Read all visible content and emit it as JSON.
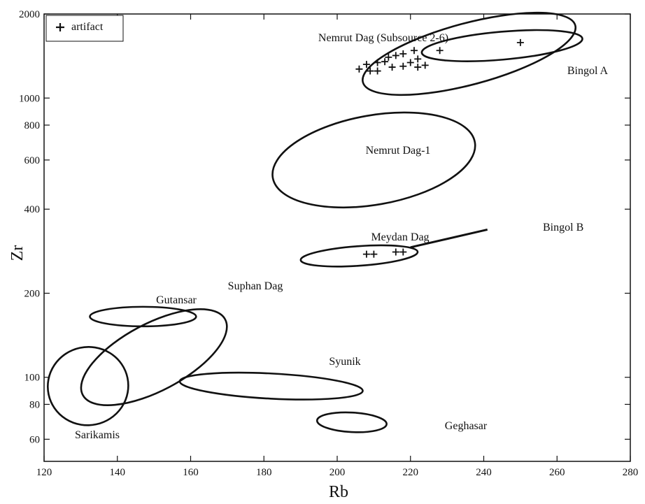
{
  "chart_data": {
    "type": "scatter",
    "xlabel": "Rb",
    "ylabel": "Zr",
    "xlim": [
      120,
      280
    ],
    "ylim": [
      50,
      2000
    ],
    "yscale": "log",
    "x_ticks": [
      120,
      140,
      160,
      180,
      200,
      220,
      240,
      260,
      280
    ],
    "y_ticks": [
      60,
      80,
      100,
      200,
      400,
      600,
      800,
      1000,
      2000
    ],
    "grid": false,
    "legend": {
      "position": "top-left",
      "entries": [
        {
          "marker": "+",
          "label": "artifact"
        }
      ]
    },
    "series": [
      {
        "name": "artifact",
        "marker": "+",
        "points": [
          {
            "x": 206,
            "y": 1270
          },
          {
            "x": 208,
            "y": 1320
          },
          {
            "x": 209,
            "y": 1250
          },
          {
            "x": 211,
            "y": 1340
          },
          {
            "x": 211,
            "y": 1250
          },
          {
            "x": 213,
            "y": 1350
          },
          {
            "x": 214,
            "y": 1400
          },
          {
            "x": 215,
            "y": 1290
          },
          {
            "x": 216,
            "y": 1420
          },
          {
            "x": 218,
            "y": 1440
          },
          {
            "x": 218,
            "y": 1300
          },
          {
            "x": 220,
            "y": 1340
          },
          {
            "x": 221,
            "y": 1480
          },
          {
            "x": 222,
            "y": 1290
          },
          {
            "x": 222,
            "y": 1380
          },
          {
            "x": 224,
            "y": 1310
          },
          {
            "x": 228,
            "y": 1480
          },
          {
            "x": 250,
            "y": 1580
          },
          {
            "x": 208,
            "y": 276
          },
          {
            "x": 210,
            "y": 276
          },
          {
            "x": 216,
            "y": 281
          },
          {
            "x": 218,
            "y": 281
          }
        ]
      }
    ],
    "source_fields": [
      {
        "label": "Nemrut Dag (Subsource 2-6)",
        "cx": 236,
        "cy": 1440,
        "rx": 30,
        "ry": 0.11,
        "angle_deg": 15
      },
      {
        "label": "Bingol A",
        "cx": 245,
        "cy": 1540,
        "rx": 22,
        "ry": 0.05,
        "angle_deg": 5
      },
      {
        "label": "Nemrut Dag-1",
        "cx": 210,
        "cy": 600,
        "rx": 28,
        "ry": 0.16,
        "angle_deg": 10
      },
      {
        "label": "Meydan Dag",
        "cx": 206,
        "cy": 272,
        "rx": 16,
        "ry": 0.035,
        "angle_deg": 4
      },
      {
        "label": "Bingol B",
        "from": {
          "x": 220,
          "y": 292
        },
        "to": {
          "x": 241,
          "y": 338
        }
      },
      {
        "label": "Gutansar",
        "cx": 147,
        "cy": 165,
        "rx": 14.5,
        "ry": 0.035,
        "angle_deg": 0
      },
      {
        "label": "Suphan Dag",
        "cx": 150,
        "cy": 118,
        "rx": 22,
        "ry": 0.12,
        "angle_deg": 28
      },
      {
        "label": "Sarikamis",
        "cx": 132,
        "cy": 93,
        "rx": 11,
        "ry": 0.14,
        "angle_deg": 12
      },
      {
        "label": "Syunik",
        "cx": 182,
        "cy": 93,
        "rx": 25,
        "ry": 0.045,
        "angle_deg": -3
      },
      {
        "label": "Geghasar",
        "cx": 204,
        "cy": 69,
        "rx": 9.5,
        "ry": 0.035,
        "angle_deg": -3
      }
    ]
  }
}
